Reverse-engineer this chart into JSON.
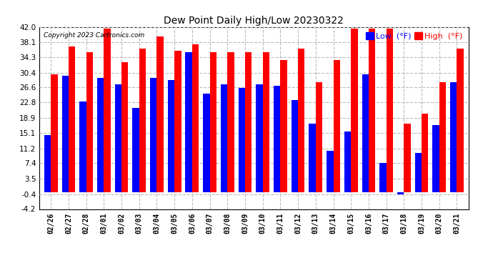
{
  "title": "Dew Point Daily High/Low 20230322",
  "copyright": "Copyright 2023 Cartronics.com",
  "dates": [
    "02/26",
    "02/27",
    "02/28",
    "03/01",
    "03/02",
    "03/03",
    "03/04",
    "03/05",
    "03/06",
    "03/07",
    "03/08",
    "03/09",
    "03/10",
    "03/11",
    "03/12",
    "03/13",
    "03/14",
    "03/15",
    "03/16",
    "03/17",
    "03/18",
    "03/19",
    "03/20",
    "03/21"
  ],
  "high": [
    30.0,
    37.0,
    35.5,
    41.5,
    33.0,
    36.5,
    39.5,
    36.0,
    37.5,
    35.5,
    35.5,
    35.5,
    35.5,
    33.5,
    36.5,
    28.0,
    33.5,
    41.5,
    41.5,
    41.5,
    17.5,
    20.0,
    28.0,
    36.5
  ],
  "low": [
    14.5,
    29.5,
    23.0,
    29.0,
    27.5,
    21.5,
    29.0,
    28.5,
    35.5,
    25.0,
    27.5,
    26.5,
    27.5,
    27.0,
    23.5,
    17.5,
    10.5,
    15.5,
    30.0,
    7.5,
    -0.5,
    10.0,
    17.0,
    28.0
  ],
  "ylim": [
    -4.2,
    42.0
  ],
  "yticks": [
    -4.2,
    -0.4,
    3.5,
    7.4,
    11.2,
    15.1,
    18.9,
    22.8,
    26.6,
    30.4,
    34.3,
    38.1,
    42.0
  ],
  "high_color": "#ff0000",
  "low_color": "#0000ff",
  "bg_color": "#ffffff",
  "grid_color": "#bbbbbb",
  "bar_width": 0.38
}
